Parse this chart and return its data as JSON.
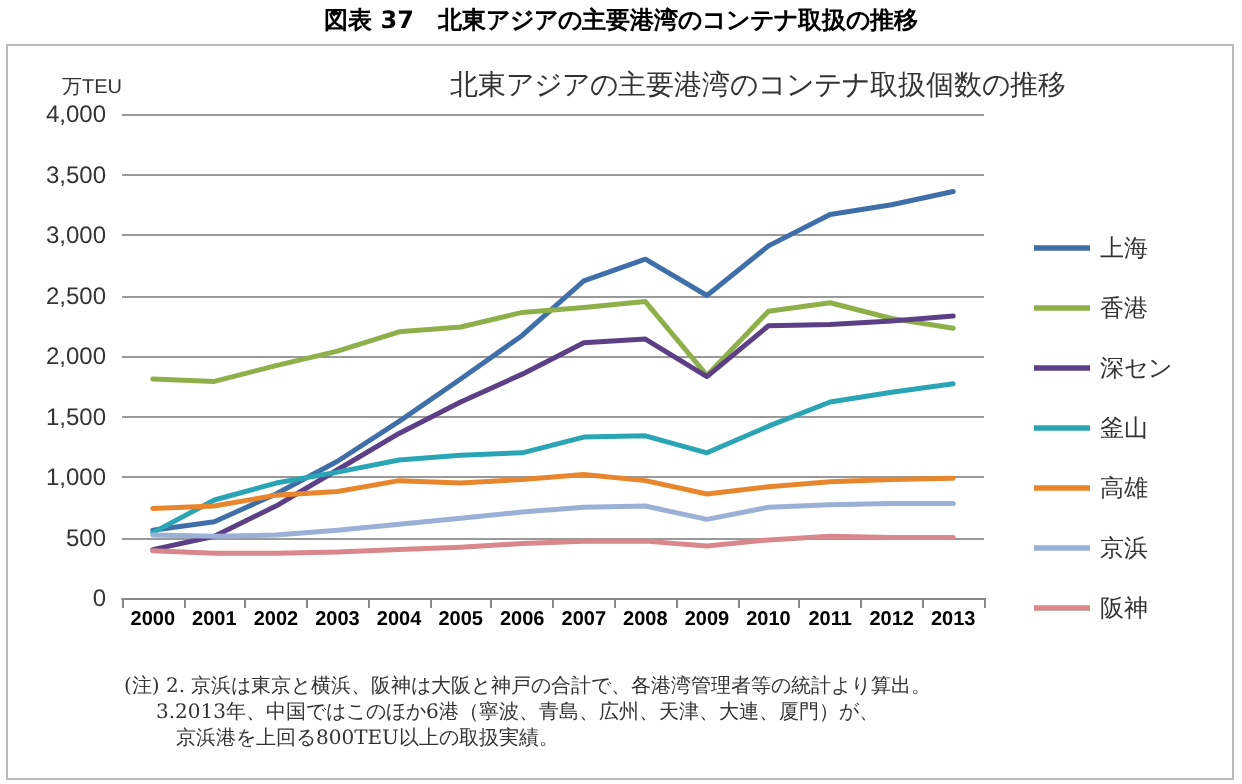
{
  "chart_data": {
    "type": "line",
    "title": "図表 37　北東アジアの主要港湾のコンテナ取扱の推移",
    "subtitle": "北東アジアの主要港湾のコンテナ取扱個数の推移",
    "ylabel": "万TEU",
    "categories": [
      "2000",
      "2001",
      "2002",
      "2003",
      "2004",
      "2005",
      "2006",
      "2007",
      "2008",
      "2009",
      "2010",
      "2011",
      "2012",
      "2013"
    ],
    "series": [
      {
        "name": "上海",
        "color": "#3f6fa8",
        "values": [
          560,
          630,
          860,
          1130,
          1460,
          1810,
          2170,
          2620,
          2800,
          2500,
          2910,
          3170,
          3250,
          3360
        ]
      },
      {
        "name": "香港",
        "color": "#8db04a",
        "values": [
          1810,
          1790,
          1920,
          2040,
          2200,
          2240,
          2360,
          2400,
          2450,
          1840,
          2370,
          2440,
          2310,
          2230
        ]
      },
      {
        "name": "深セン",
        "color": "#5c3f87",
        "values": [
          400,
          510,
          760,
          1060,
          1360,
          1620,
          1850,
          2110,
          2140,
          1830,
          2250,
          2260,
          2290,
          2330
        ]
      },
      {
        "name": "釜山",
        "color": "#2aa5b5",
        "values": [
          540,
          810,
          950,
          1040,
          1140,
          1180,
          1200,
          1330,
          1340,
          1200,
          1420,
          1620,
          1700,
          1770
        ]
      },
      {
        "name": "高雄",
        "color": "#e8862e",
        "values": [
          740,
          760,
          850,
          880,
          970,
          950,
          980,
          1020,
          970,
          860,
          920,
          960,
          980,
          990
        ]
      },
      {
        "name": "京浜",
        "color": "#9bb0d6",
        "values": [
          520,
          510,
          520,
          560,
          610,
          660,
          710,
          750,
          760,
          650,
          750,
          770,
          780,
          780
        ]
      },
      {
        "name": "阪神",
        "color": "#d9878a",
        "values": [
          390,
          370,
          370,
          380,
          400,
          420,
          450,
          470,
          470,
          430,
          480,
          510,
          500,
          500
        ]
      }
    ],
    "ylim": [
      0,
      4000
    ],
    "yticks": [
      0,
      500,
      {
        "value": 1000,
        "label": "1,000"
      },
      {
        "value": 1500,
        "label": "1,500"
      },
      {
        "value": 2000,
        "label": "2,000"
      },
      {
        "value": 2500,
        "label": "2,500"
      },
      {
        "value": 3000,
        "label": "3,000"
      },
      {
        "value": 3500,
        "label": "3,500"
      },
      {
        "value": 4000,
        "label": "4,000"
      }
    ],
    "grid": "y",
    "legend": "right",
    "marker": "none",
    "line_style": "solid",
    "annotations": [
      "(注) 2. 京浜は東京と横浜、阪神は大阪と神戸の合計で、各港湾管理者等の統計より算出。",
      "3.2013年、中国ではこのほか6港（寧波、青島、広州、天津、大連、厦門）が、",
      "京浜港を上回る800TEU以上の取扱実績。"
    ]
  }
}
